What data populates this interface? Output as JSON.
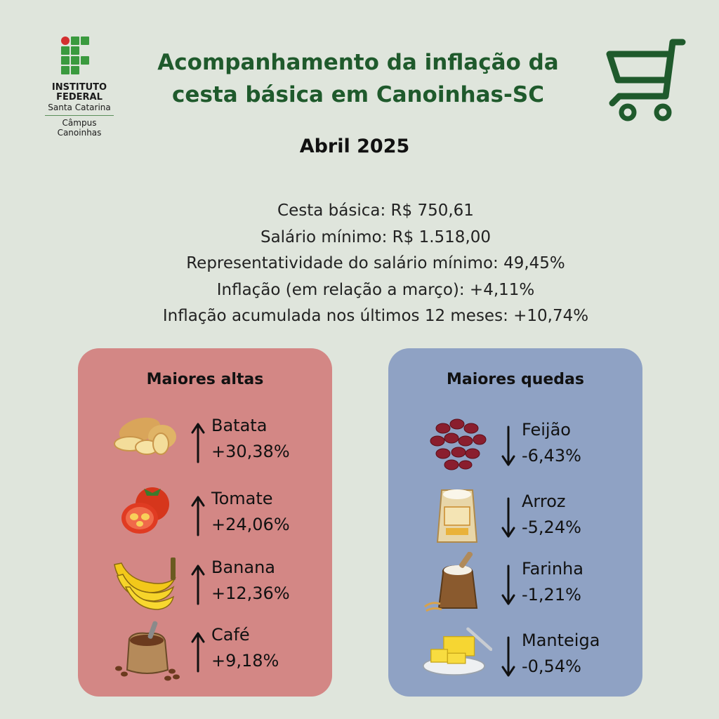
{
  "logo": {
    "line1": "INSTITUTO",
    "line2": "FEDERAL",
    "line3": "Santa Catarina",
    "campus1": "Câmpus",
    "campus2": "Canoinhas"
  },
  "header": {
    "title_line1": "Acompanhamento da inflação da",
    "title_line2": "cesta básica em Canoinhas-SC",
    "cart_icon": "shopping-cart-icon"
  },
  "period": "Abril 2025",
  "stats": [
    "Cesta básica: R$ 750,61",
    "Salário mínimo: R$ 1.518,00",
    "Representatividade do salário mínimo: 49,45%",
    "Inflação (em relação a março): +4,11%",
    "Inflação acumulada nos últimos 12 meses: +10,74%"
  ],
  "highs": {
    "title": "Maiores altas",
    "items": [
      {
        "name": "Batata",
        "pct": "+30,38%",
        "icon": "potato-icon"
      },
      {
        "name": "Tomate",
        "pct": "+24,06%",
        "icon": "tomato-icon"
      },
      {
        "name": "Banana",
        "pct": "+12,36%",
        "icon": "banana-icon"
      },
      {
        "name": "Café",
        "pct": "+9,18%",
        "icon": "coffee-beans-icon"
      }
    ]
  },
  "lows": {
    "title": "Maiores quedas",
    "items": [
      {
        "name": "Feijão",
        "pct": "-6,43%",
        "icon": "beans-icon"
      },
      {
        "name": "Arroz",
        "pct": "-5,24%",
        "icon": "rice-bag-icon"
      },
      {
        "name": "Farinha",
        "pct": "-1,21%",
        "icon": "flour-bag-icon"
      },
      {
        "name": "Manteiga",
        "pct": "-0,54%",
        "icon": "butter-icon"
      }
    ]
  },
  "colors": {
    "background": "#dfe5dc",
    "title_green": "#1f5a2c",
    "highs_panel": "#d38785",
    "lows_panel": "#8fa2c4",
    "logo_green": "#3a9a3e",
    "logo_red": "#d32f2f"
  }
}
